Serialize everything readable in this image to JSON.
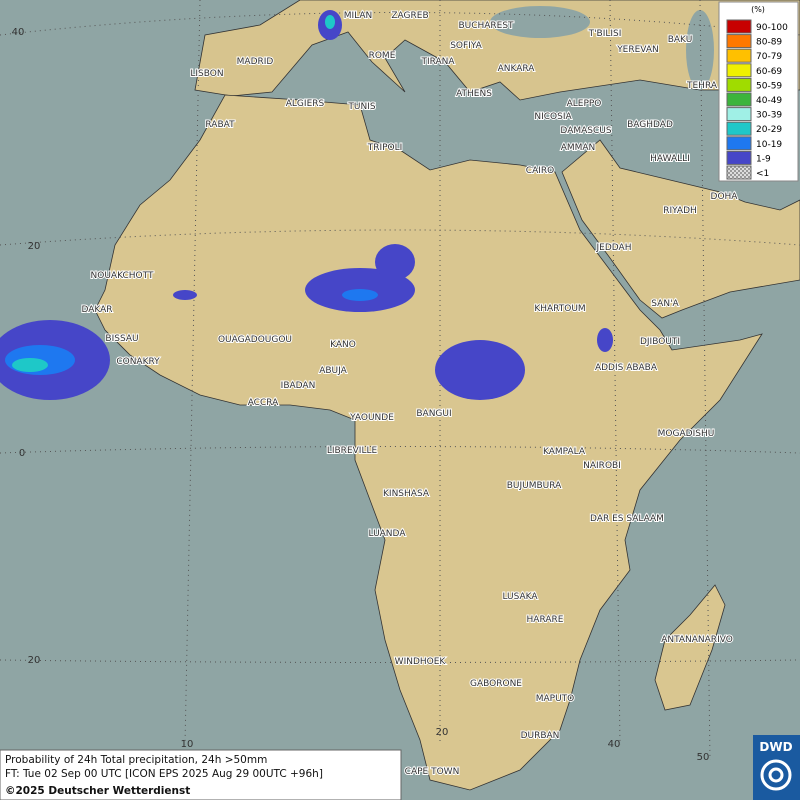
{
  "map": {
    "cities": [
      "MILAN",
      "ZAGREB",
      "BUCHAREST",
      "T'BILISI",
      "BAKU",
      "SOFIYA",
      "YEREVAN",
      "MADRID",
      "ROME",
      "TIRANA",
      "ANKARA",
      "LISBON",
      "TEHRA",
      "ATHENS",
      "ALGIERS",
      "TUNIS",
      "ALEPPO",
      "RABAT",
      "NICOSIA",
      "BAGHDAD",
      "DAMASCUS",
      "TRIPOLI",
      "AMMAN",
      "HAWALLI",
      "CAIRO",
      "DOHA",
      "RIYADH",
      "JEDDAH",
      "NOUAKCHOTT",
      "SAN'A",
      "DAKAR",
      "KHARTOUM",
      "BISSAU",
      "OUAGADOUGOU",
      "DJIBOUTI",
      "KANO",
      "CONAKRY",
      "ABUJA",
      "ADDIS ABABA",
      "IBADAN",
      "ACCRA",
      "YAOUNDE",
      "BANGUI",
      "MOGADISHU",
      "LIBREVILLE",
      "KAMPALA",
      "NAIROBI",
      "KINSHASA",
      "BUJUMBURA",
      "DAR ES SALAAM",
      "LUANDA",
      "LUSAKA",
      "HARARE",
      "ANTANANARIVO",
      "WINDHOEK",
      "GABORONE",
      "MAPUTO",
      "DURBAN",
      "CAPE TOWN"
    ],
    "graticule_labels": [
      "40",
      "20",
      "0",
      "20",
      "10",
      "20",
      "40",
      "50"
    ]
  },
  "legend": {
    "title": "(%)",
    "items": [
      {
        "label": "90-100",
        "color": "#c80000"
      },
      {
        "label": "80-89",
        "color": "#ff7800"
      },
      {
        "label": "70-79",
        "color": "#ffc000"
      },
      {
        "label": "60-69",
        "color": "#f0f000"
      },
      {
        "label": "50-59",
        "color": "#a0dc00"
      },
      {
        "label": "40-49",
        "color": "#3cb43c"
      },
      {
        "label": "30-39",
        "color": "#a0f0e6"
      },
      {
        "label": "20-29",
        "color": "#1ec8c8"
      },
      {
        "label": "10-19",
        "color": "#1e78f0"
      },
      {
        "label": "1-9",
        "color": "#4646c8"
      },
      {
        "label": "<1",
        "color": "#b4b4b4"
      }
    ]
  },
  "info": {
    "lines": [
      "Probability of 24h Total precipitation, 24h >50mm",
      "FT: Tue 02 Sep 00 UTC [ICON EPS 2025 Aug 29 00UTC +96h]",
      "©2025 Deutscher Wetterdienst"
    ]
  },
  "logo": "DWD"
}
